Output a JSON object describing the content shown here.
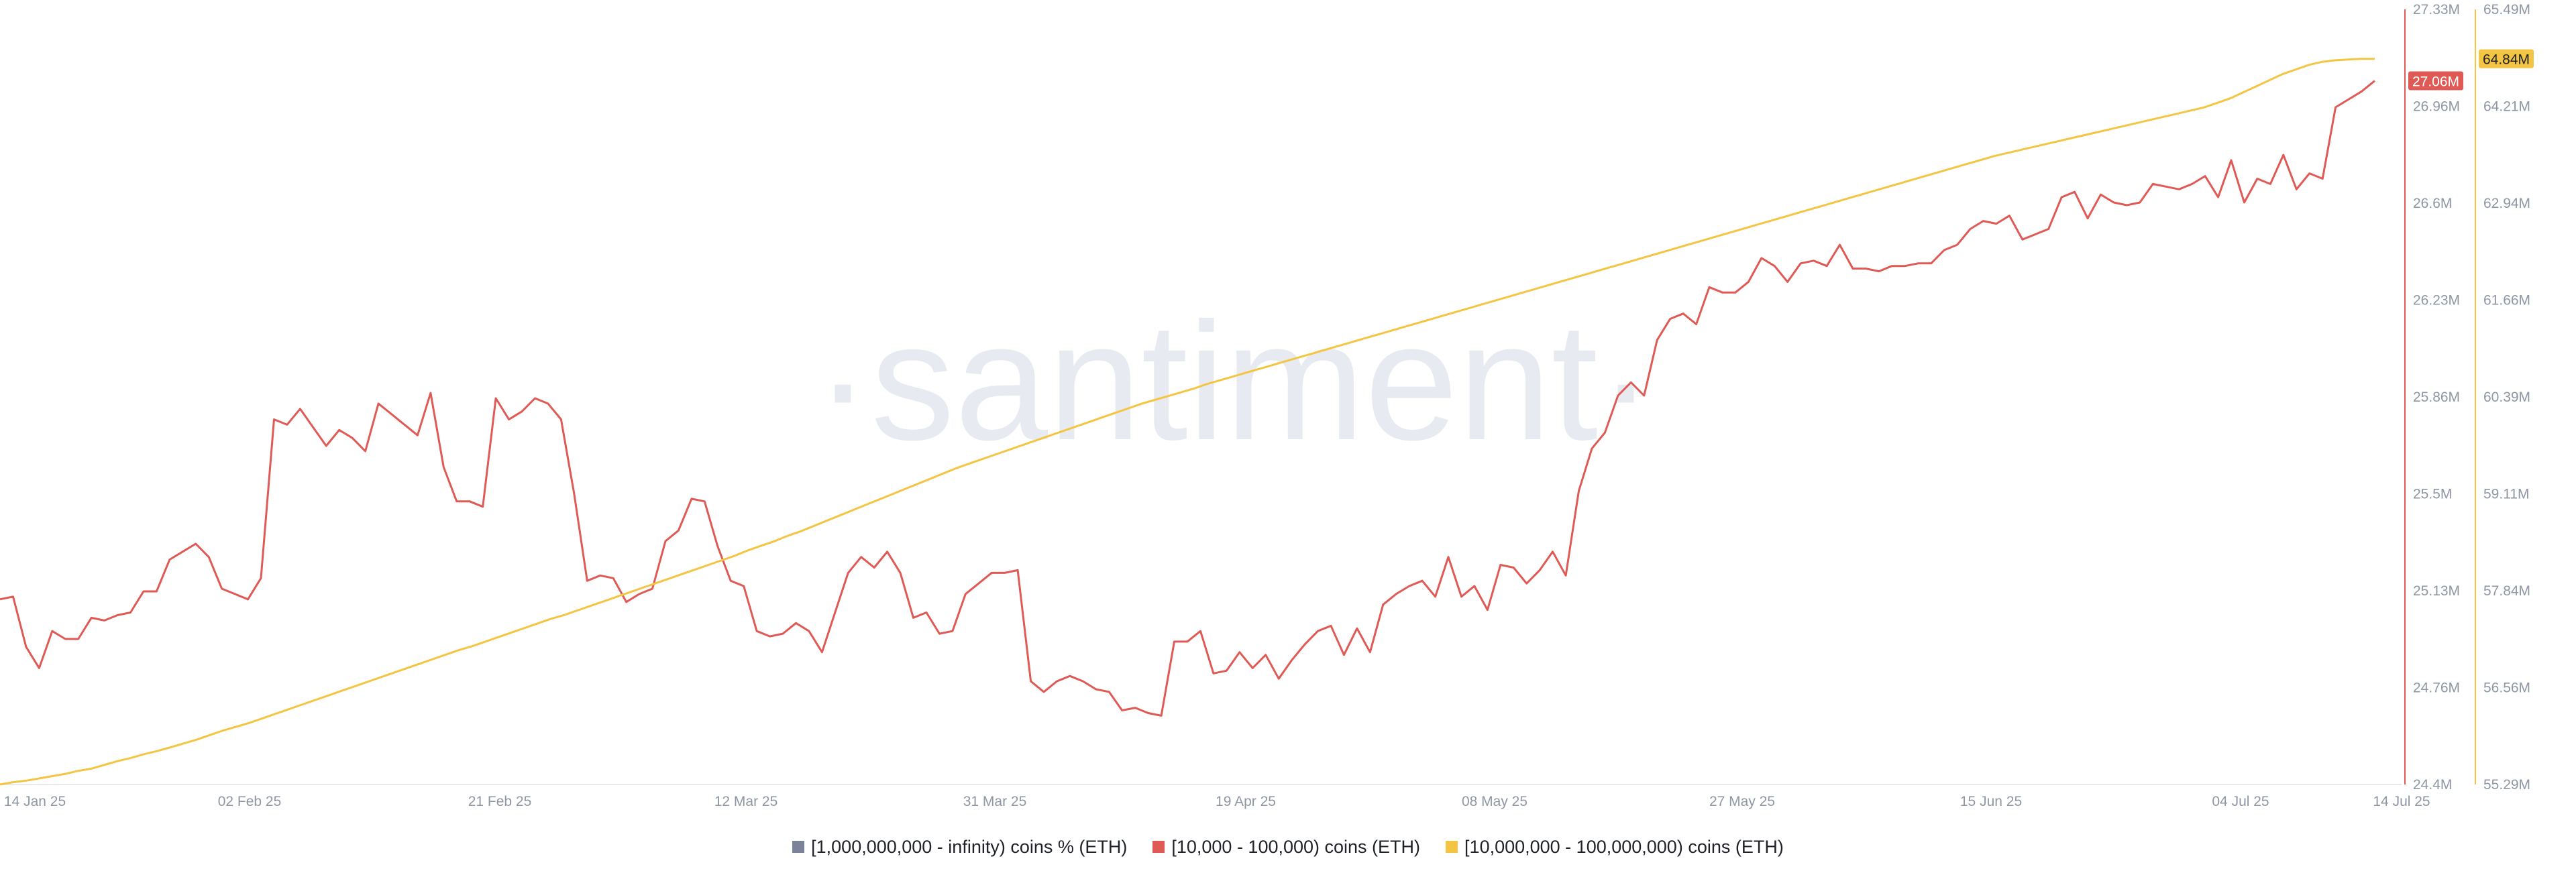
{
  "watermark": "·santiment·",
  "chart_data": {
    "type": "line",
    "x_ticks": [
      "14 Jan 25",
      "02 Feb 25",
      "21 Feb 25",
      "12 Mar 25",
      "31 Mar 25",
      "19 Apr 25",
      "08 May 25",
      "27 May 25",
      "15 Jun 25",
      "04 Jul 25",
      "14 Jul 25"
    ],
    "legend_position": "bottom-center",
    "grid": false,
    "axes": {
      "left_inner": {
        "ylim": [
          24.4,
          27.33
        ],
        "ticks": [
          "27.33M",
          "26.96M",
          "26.6M",
          "26.23M",
          "25.86M",
          "25.5M",
          "25.13M",
          "24.76M",
          "24.4M"
        ],
        "color": "#e05a55"
      },
      "right_outer": {
        "ylim": [
          55.29,
          65.49
        ],
        "ticks": [
          "65.49M",
          "64.21M",
          "62.94M",
          "61.66M",
          "60.39M",
          "59.11M",
          "57.84M",
          "56.56M",
          "55.29M"
        ],
        "color": "#f4c542"
      }
    },
    "series": [
      {
        "name": "[1,000,000,000 - infinity) coins % (ETH)",
        "color": "#7a8399",
        "values": []
      },
      {
        "name": "[10,000 - 100,000) coins (ETH)",
        "color": "#e05a55",
        "axis": "left_inner",
        "unit": "M",
        "last_label": "27.06M",
        "values": [
          25.1,
          25.11,
          24.92,
          24.84,
          24.98,
          24.95,
          24.95,
          25.03,
          25.02,
          25.04,
          25.05,
          25.13,
          25.13,
          25.25,
          25.28,
          25.31,
          25.26,
          25.14,
          25.12,
          25.1,
          25.18,
          25.78,
          25.76,
          25.82,
          25.75,
          25.68,
          25.74,
          25.71,
          25.66,
          25.84,
          25.8,
          25.76,
          25.72,
          25.88,
          25.6,
          25.47,
          25.47,
          25.45,
          25.86,
          25.78,
          25.81,
          25.86,
          25.84,
          25.78,
          25.5,
          25.17,
          25.19,
          25.18,
          25.09,
          25.12,
          25.14,
          25.32,
          25.36,
          25.48,
          25.47,
          25.3,
          25.17,
          25.15,
          24.98,
          24.96,
          24.97,
          25.01,
          24.98,
          24.9,
          25.05,
          25.2,
          25.26,
          25.22,
          25.28,
          25.2,
          25.03,
          25.05,
          24.97,
          24.98,
          25.12,
          25.16,
          25.2,
          25.2,
          25.21,
          24.79,
          24.75,
          24.79,
          24.81,
          24.79,
          24.76,
          24.75,
          24.68,
          24.69,
          24.67,
          24.66,
          24.94,
          24.94,
          24.98,
          24.82,
          24.83,
          24.9,
          24.84,
          24.89,
          24.8,
          24.87,
          24.93,
          24.98,
          25.0,
          24.89,
          24.99,
          24.9,
          25.08,
          25.12,
          25.15,
          25.17,
          25.11,
          25.26,
          25.11,
          25.15,
          25.06,
          25.23,
          25.22,
          25.16,
          25.21,
          25.28,
          25.19,
          25.51,
          25.67,
          25.73,
          25.87,
          25.92,
          25.87,
          26.08,
          26.16,
          26.18,
          26.14,
          26.28,
          26.26,
          26.26,
          26.3,
          26.39,
          26.36,
          26.3,
          26.37,
          26.38,
          26.36,
          26.44,
          26.35,
          26.35,
          26.34,
          26.36,
          26.36,
          26.37,
          26.37,
          26.42,
          26.44,
          26.5,
          26.53,
          26.52,
          26.55,
          26.46,
          26.48,
          26.5,
          26.62,
          26.64,
          26.54,
          26.63,
          26.6,
          26.59,
          26.6,
          26.67,
          26.66,
          26.65,
          26.67,
          26.7,
          26.62,
          26.76,
          26.6,
          26.69,
          26.67,
          26.78,
          26.65,
          26.71,
          26.69,
          26.96,
          26.99,
          27.02,
          27.06
        ]
      },
      {
        "name": "[10,000,000 - 100,000,000) coins (ETH)",
        "color": "#f4c542",
        "axis": "right_outer",
        "unit": "M",
        "last_label": "64.84M",
        "values": [
          55.29,
          55.32,
          55.34,
          55.37,
          55.4,
          55.43,
          55.47,
          55.5,
          55.55,
          55.6,
          55.64,
          55.69,
          55.73,
          55.78,
          55.83,
          55.88,
          55.94,
          56.0,
          56.05,
          56.1,
          56.16,
          56.22,
          56.28,
          56.34,
          56.4,
          56.46,
          56.52,
          56.58,
          56.64,
          56.7,
          56.76,
          56.82,
          56.88,
          56.94,
          57.0,
          57.06,
          57.11,
          57.17,
          57.23,
          57.29,
          57.35,
          57.41,
          57.47,
          57.52,
          57.58,
          57.64,
          57.7,
          57.76,
          57.82,
          57.88,
          57.94,
          58.0,
          58.06,
          58.12,
          58.18,
          58.24,
          58.3,
          58.37,
          58.43,
          58.49,
          58.56,
          58.62,
          58.69,
          58.76,
          58.83,
          58.9,
          58.97,
          59.04,
          59.11,
          59.18,
          59.25,
          59.32,
          59.39,
          59.46,
          59.52,
          59.58,
          59.64,
          59.7,
          59.76,
          59.82,
          59.88,
          59.94,
          60.0,
          60.06,
          60.12,
          60.18,
          60.24,
          60.3,
          60.35,
          60.4,
          60.45,
          60.5,
          60.56,
          60.61,
          60.66,
          60.71,
          60.76,
          60.81,
          60.86,
          60.91,
          60.96,
          61.01,
          61.06,
          61.11,
          61.16,
          61.21,
          61.26,
          61.31,
          61.36,
          61.41,
          61.46,
          61.51,
          61.56,
          61.61,
          61.66,
          61.71,
          61.76,
          61.81,
          61.86,
          61.91,
          61.96,
          62.01,
          62.06,
          62.11,
          62.16,
          62.21,
          62.26,
          62.31,
          62.36,
          62.41,
          62.46,
          62.51,
          62.56,
          62.61,
          62.66,
          62.71,
          62.76,
          62.81,
          62.86,
          62.91,
          62.96,
          63.01,
          63.06,
          63.11,
          63.16,
          63.21,
          63.26,
          63.31,
          63.36,
          63.41,
          63.46,
          63.51,
          63.56,
          63.6,
          63.64,
          63.68,
          63.72,
          63.76,
          63.8,
          63.84,
          63.88,
          63.92,
          63.96,
          64.0,
          64.04,
          64.08,
          64.12,
          64.16,
          64.2,
          64.26,
          64.32,
          64.4,
          64.48,
          64.56,
          64.64,
          64.7,
          64.76,
          64.8,
          64.82,
          64.83,
          64.84,
          64.84
        ]
      }
    ]
  }
}
